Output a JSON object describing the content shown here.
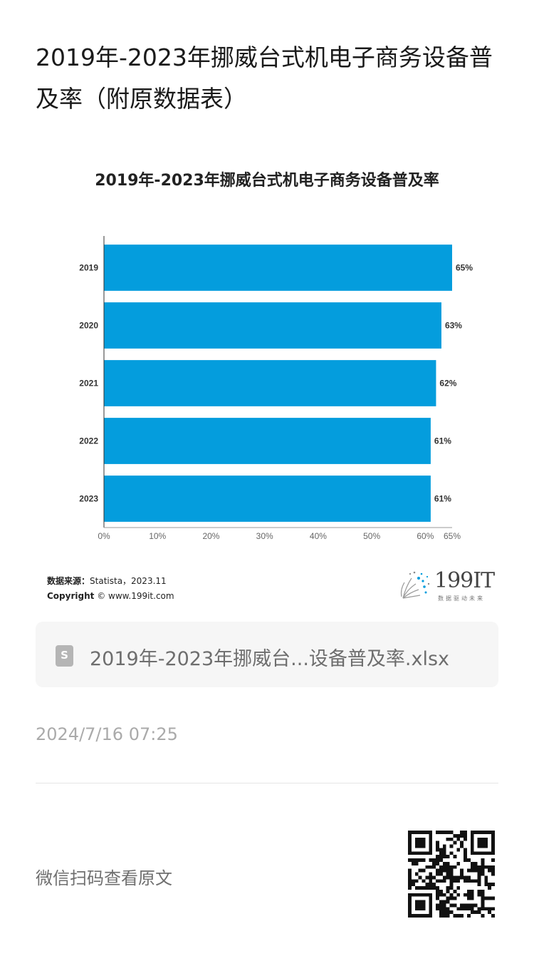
{
  "article": {
    "title": "2019年-2023年挪威台式机电子商务设备普及率（附原数据表）"
  },
  "chart_data": {
    "type": "bar",
    "orientation": "horizontal",
    "title": "2019年-2023年挪威台式机电子商务设备普及率",
    "categories": [
      "2019",
      "2020",
      "2021",
      "2022",
      "2023"
    ],
    "values": [
      65,
      63,
      62,
      61,
      61
    ],
    "value_labels": [
      "65%",
      "63%",
      "62%",
      "61%",
      "61%"
    ],
    "xlim": [
      0,
      65
    ],
    "x_ticks": [
      0,
      10,
      20,
      30,
      40,
      50,
      60,
      65
    ],
    "x_tick_labels": [
      "0%",
      "10%",
      "20%",
      "30%",
      "40%",
      "50%",
      "60%",
      "65%"
    ],
    "bar_color": "#049ddd",
    "grid": false,
    "legend": "none"
  },
  "source": {
    "label": "数据来源：",
    "value": "Statista，2023.11",
    "copyright_label": "Copyright",
    "copyright_symbol": "©",
    "copyright_value": "www.199it.com"
  },
  "logo": {
    "text": "199IT",
    "tagline": "数据驱动未来"
  },
  "attachment": {
    "icon": "spreadsheet-file-icon",
    "icon_letter": "S",
    "filename": "2019年-2023年挪威台...设备普及率.xlsx"
  },
  "meta": {
    "timestamp": "2024/7/16 07:25",
    "scan_prompt": "微信扫码查看原文"
  }
}
